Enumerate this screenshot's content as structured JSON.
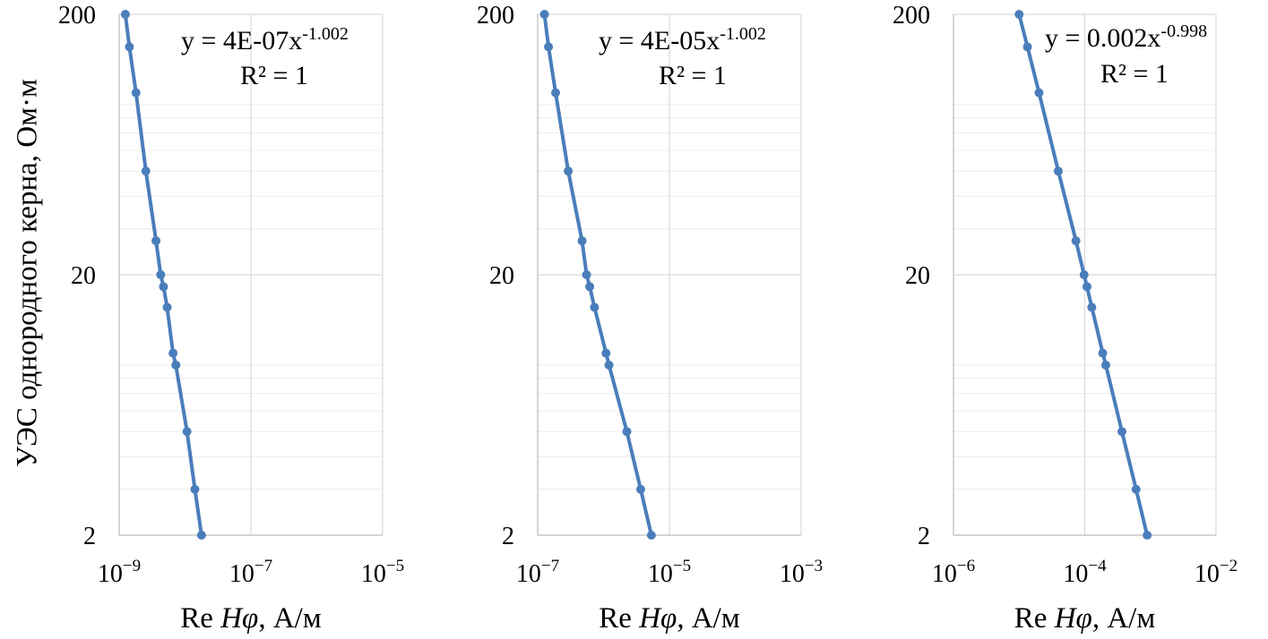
{
  "figure": {
    "ylabel": "УЭС однородного керна, Ом·м",
    "xlabel_prefix": "Re ",
    "xlabel_var": "Hφ",
    "xlabel_unit": ", А/м",
    "line_color": "#4a7ebb",
    "grid_color": "#d9d9d9"
  },
  "chart_data": [
    {
      "type": "line",
      "xscale": "log",
      "yscale": "log",
      "xlim": [
        1e-09,
        1e-05
      ],
      "ylim": [
        2,
        200
      ],
      "xticks": [
        1e-09,
        1e-07,
        1e-05
      ],
      "xtick_labels": [
        {
          "base": "10",
          "exp": "−9"
        },
        {
          "base": "10",
          "exp": "−7"
        },
        {
          "base": "10",
          "exp": "−5"
        }
      ],
      "yticks": [
        2,
        20,
        200
      ],
      "ytick_labels": [
        "2",
        "20",
        "200"
      ],
      "xlabel": "Re Hφ, А/м",
      "ylabel": "УЭС однородного керна, Ом·м",
      "annotation": {
        "eq_prefix": "y = 4E-07x",
        "eq_exp": "-1.002",
        "r2": "R² = 1"
      },
      "points": [
        {
          "x": 1.24e-09,
          "y": 200
        },
        {
          "x": 1.43e-09,
          "y": 150
        },
        {
          "x": 1.8e-09,
          "y": 100
        },
        {
          "x": 2.54e-09,
          "y": 50
        },
        {
          "x": 3.62e-09,
          "y": 27
        },
        {
          "x": 4.27e-09,
          "y": 20
        },
        {
          "x": 4.71e-09,
          "y": 18
        },
        {
          "x": 5.35e-09,
          "y": 15
        },
        {
          "x": 6.58e-09,
          "y": 10
        },
        {
          "x": 7.25e-09,
          "y": 9
        },
        {
          "x": 1.07e-08,
          "y": 5
        },
        {
          "x": 1.41e-08,
          "y": 3
        },
        {
          "x": 1.78e-08,
          "y": 2
        }
      ],
      "grid": true
    },
    {
      "type": "line",
      "xscale": "log",
      "yscale": "log",
      "xlim": [
        1e-07,
        0.001
      ],
      "ylim": [
        2,
        200
      ],
      "xticks": [
        1e-07,
        1e-05,
        0.001
      ],
      "xtick_labels": [
        {
          "base": "10",
          "exp": "−7"
        },
        {
          "base": "10",
          "exp": "−5"
        },
        {
          "base": "10",
          "exp": "−3"
        }
      ],
      "yticks": [
        2,
        20,
        200
      ],
      "ytick_labels": [
        "2",
        "20",
        "200"
      ],
      "xlabel": "Re Hφ, А/м",
      "annotation": {
        "eq_prefix": "y = 4E-05x",
        "eq_exp": "-1.002",
        "r2": "R² = 1"
      },
      "points": [
        {
          "x": 1.27e-07,
          "y": 200
        },
        {
          "x": 1.46e-07,
          "y": 150
        },
        {
          "x": 1.87e-07,
          "y": 100
        },
        {
          "x": 2.91e-07,
          "y": 50
        },
        {
          "x": 4.72e-07,
          "y": 27
        },
        {
          "x": 5.53e-07,
          "y": 20
        },
        {
          "x": 6.17e-07,
          "y": 18
        },
        {
          "x": 7.29e-07,
          "y": 15
        },
        {
          "x": 1.09e-06,
          "y": 10
        },
        {
          "x": 1.21e-06,
          "y": 9
        },
        {
          "x": 2.26e-06,
          "y": 5
        },
        {
          "x": 3.67e-06,
          "y": 3
        },
        {
          "x": 5.32e-06,
          "y": 2
        }
      ],
      "grid": true
    },
    {
      "type": "line",
      "xscale": "log",
      "yscale": "log",
      "xlim": [
        1e-06,
        0.01
      ],
      "ylim": [
        2,
        200
      ],
      "xticks": [
        1e-06,
        0.0001,
        0.01
      ],
      "xtick_labels": [
        {
          "base": "10",
          "exp": "−6"
        },
        {
          "base": "10",
          "exp": "−4"
        },
        {
          "base": "10",
          "exp": "−2"
        }
      ],
      "yticks": [
        2,
        20,
        200
      ],
      "ytick_labels": [
        "2",
        "20",
        "200"
      ],
      "xlabel": "Re Hφ, А/м",
      "annotation": {
        "eq_prefix": "y = 0.002x",
        "eq_exp": "-0.998",
        "r2": "R² = 1"
      },
      "points": [
        {
          "x": 1e-05,
          "y": 200
        },
        {
          "x": 1.34e-05,
          "y": 150
        },
        {
          "x": 2.01e-05,
          "y": 100
        },
        {
          "x": 3.95e-05,
          "y": 50
        },
        {
          "x": 7.34e-05,
          "y": 27
        },
        {
          "x": 9.78e-05,
          "y": 20
        },
        {
          "x": 0.000108,
          "y": 18
        },
        {
          "x": 0.000128,
          "y": 15
        },
        {
          "x": 0.000188,
          "y": 10
        },
        {
          "x": 0.000209,
          "y": 9
        },
        {
          "x": 0.000369,
          "y": 5
        },
        {
          "x": 0.000605,
          "y": 3
        },
        {
          "x": 0.000893,
          "y": 2
        }
      ],
      "grid": true
    }
  ]
}
